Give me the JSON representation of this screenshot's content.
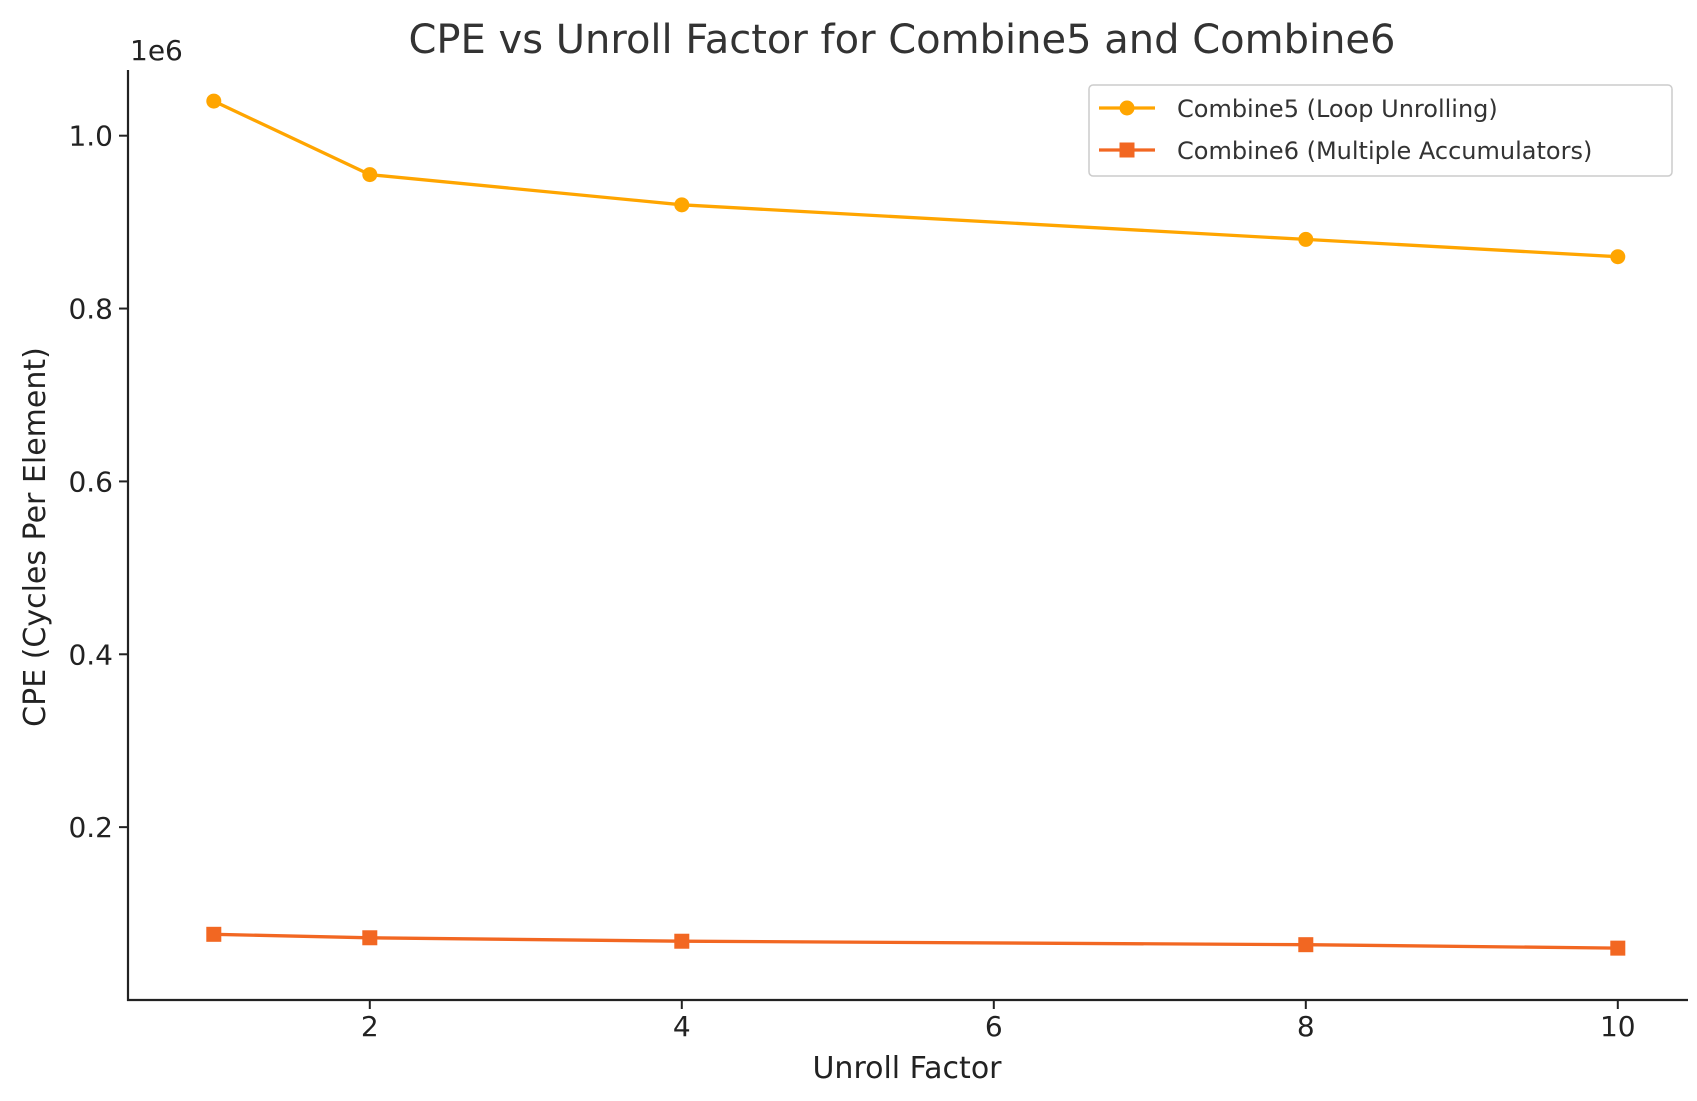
{
  "chart_data": {
    "type": "line",
    "title": "CPE vs Unroll Factor for Combine5 and Combine6",
    "xlabel": "Unroll Factor",
    "ylabel": "CPE (Cycles Per Element)",
    "y_offset_text": "1e6",
    "y_scale": 1000000,
    "x": [
      1,
      2,
      4,
      8,
      10
    ],
    "xlim": [
      0.45,
      10.45
    ],
    "ylim": [
      0,
      1076000
    ],
    "x_ticks": [
      2,
      4,
      6,
      8,
      10
    ],
    "x_tick_labels": [
      "2",
      "4",
      "6",
      "8",
      "10"
    ],
    "y_ticks": [
      200000,
      400000,
      600000,
      800000,
      1000000
    ],
    "y_tick_labels": [
      "0.2",
      "0.4",
      "0.6",
      "0.8",
      "1.0"
    ],
    "grid": false,
    "legend_position": "top-right",
    "series": [
      {
        "name": "Combine5 (Loop Unrolling)",
        "color": "#FFA500",
        "marker": "circle",
        "values": [
          1040000,
          955000,
          920000,
          880000,
          860000
        ]
      },
      {
        "name": "Combine6 (Multiple Accumulators)",
        "color": "#F26722",
        "marker": "square",
        "values": [
          76000,
          72000,
          68000,
          64000,
          60000
        ]
      }
    ]
  }
}
